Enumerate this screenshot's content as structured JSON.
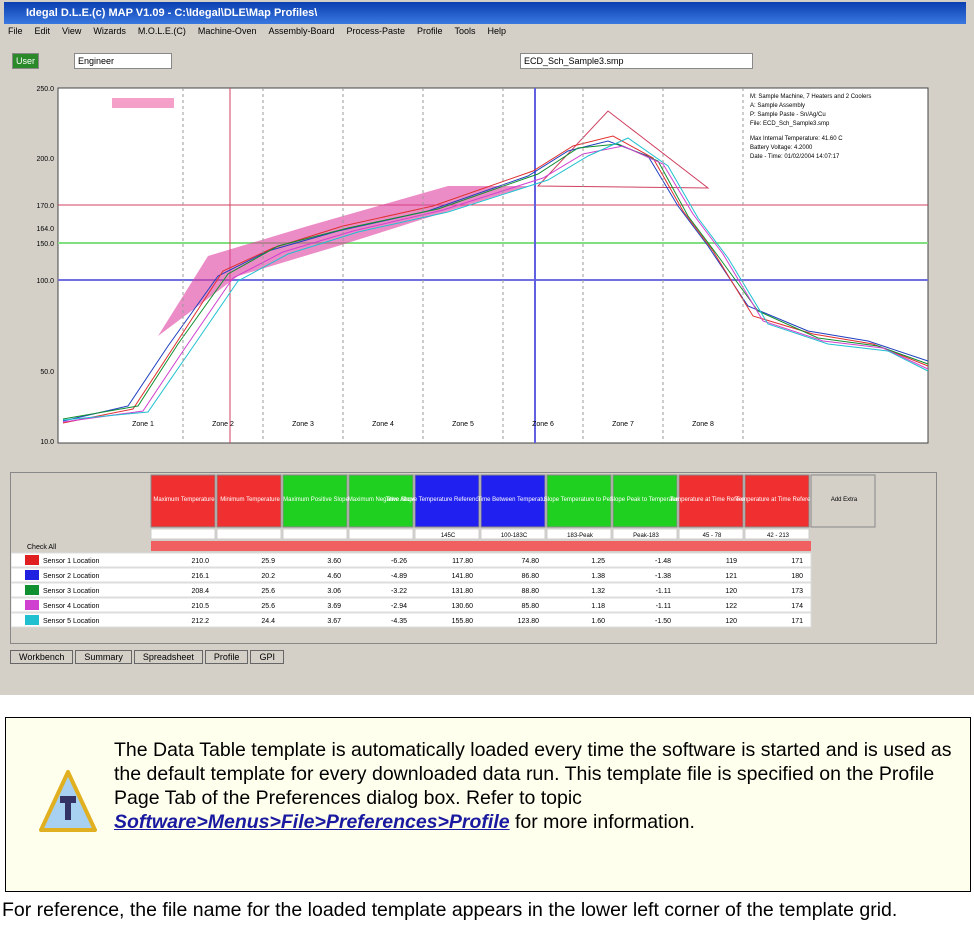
{
  "window": {
    "title": "Idegal D.L.E.(c) MAP V1.09 - C:\\Idegal\\DLE\\Map Profiles\\",
    "menus": [
      "File",
      "Edit",
      "View",
      "Wizards",
      "M.O.L.E.(C)",
      "Machine-Oven",
      "Assembly-Board",
      "Process-Paste",
      "Profile",
      "Tools",
      "Help"
    ],
    "user": "User",
    "role": "Engineer",
    "file": "ECD_Sch_Sample3.smp"
  },
  "plot": {
    "yticks": [
      "250.0",
      "200.0",
      "170.0",
      "164.0",
      "150.0",
      "100.0",
      "50.0",
      "10.0"
    ],
    "zones": [
      "Zone 1",
      "Zone 2",
      "Zone 3",
      "Zone 4",
      "Zone 5",
      "Zone 6",
      "Zone 7",
      "Zone 8"
    ],
    "info": [
      "M: Sample Machine, 7 Heaters and 2 Coolers",
      "A: Sample Assembly",
      "P: Sample Paste - Sn/Ag/Cu",
      "File: ECD_Sch_Sample3.smp",
      "Max Internal Temperature: 41.60 C",
      "Battery Voltage: 4.2000",
      "Date - Time: 01/02/2004 14:07:17"
    ]
  },
  "table": {
    "headers": [
      "Maximum Temperature",
      "Minimum Temperature",
      "Maximum Positive Slope",
      "Maximum Negative Slope",
      "Time Above Temperature Reference: Rising (s)",
      "Time Between Temperature",
      "Slope Temperature to Peak",
      "Slope Peak to Temperature",
      "Temperature at Time Reference",
      "Temperature at Time Reference",
      "Add Extra"
    ],
    "specs": [
      "",
      "",
      "",
      "",
      "145C",
      "100-183C",
      "183-Peak",
      "Peak-183",
      "45 - 78",
      "42 - 213"
    ],
    "check_all": "Check All",
    "rows": [
      [
        "Sensor 1 Location",
        "210.0",
        "25.9",
        "3.60",
        "-6.26",
        "117.80",
        "74.80",
        "1.25",
        "-1.48",
        "119",
        "171"
      ],
      [
        "Sensor 2 Location",
        "216.1",
        "20.2",
        "4.60",
        "-4.89",
        "141.80",
        "86.80",
        "1.38",
        "-1.38",
        "121",
        "180"
      ],
      [
        "Sensor 3 Location",
        "208.4",
        "25.6",
        "3.06",
        "-3.22",
        "131.80",
        "88.80",
        "1.32",
        "-1.11",
        "120",
        "173"
      ],
      [
        "Sensor 4 Location",
        "210.5",
        "25.6",
        "3.69",
        "-2.94",
        "130.60",
        "85.80",
        "1.18",
        "-1.11",
        "122",
        "174"
      ],
      [
        "Sensor 5 Location",
        "212.2",
        "24.4",
        "3.67",
        "-4.35",
        "155.80",
        "123.80",
        "1.60",
        "-1.50",
        "120",
        "171"
      ]
    ]
  },
  "tabs": [
    "Workbench",
    "Summary",
    "Spreadsheet",
    "Profile",
    "GPI"
  ],
  "note": {
    "before": "The Data Table   template is automatically loaded every time the software is started and is used as the default template for every downloaded data run. This template file is specified on the Profile Page Tab of the Preferences dialog box. Refer to topic ",
    "link": "Software>Menus>File>Preferences>Profile",
    "after": " for more information."
  },
  "caption": "For reference, the file name for the loaded template appears in the lower left corner of the template grid."
}
